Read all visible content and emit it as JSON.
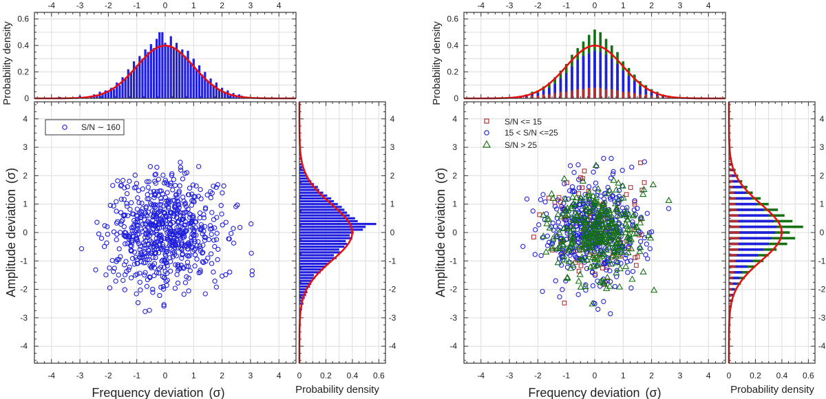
{
  "colors": {
    "blue": "#1f1fdd",
    "red": "#e81010",
    "green": "#137013",
    "darkred": "#b03030",
    "grid": "#dcdcdc",
    "frame": "#333333"
  },
  "chart_data": [
    {
      "type": "scatter",
      "id": "left",
      "xlabel": "Frequency deviation",
      "xlabel_sym": "(σ)",
      "ylabel": "Amplitude deviation",
      "ylabel_sym": "(σ)",
      "top_ylabel": "Probability density",
      "right_xlabel": "Probability density",
      "xlim": [
        -4.6,
        4.6
      ],
      "ylim": [
        -4.6,
        4.6
      ],
      "x_ticks": [
        "-4",
        "-3",
        "-2",
        "-1",
        "0",
        "1",
        "2",
        "3",
        "4"
      ],
      "y_ticks": [
        "-4",
        "-3",
        "-2",
        "-1",
        "0",
        "1",
        "2",
        "3",
        "4"
      ],
      "pd_ticks": [
        "0",
        "0.2",
        "0.4",
        "0.6"
      ],
      "pd_lim": [
        0,
        0.65
      ],
      "legend": [
        {
          "label": "S/N ∼ 160",
          "marker": "circle",
          "color": "#1f1fdd"
        }
      ],
      "series": [
        {
          "name": "S/N ∼ 160",
          "color": "#1f1fdd",
          "marker": "circle",
          "n": 720,
          "sd": 0.98,
          "seed": 7
        }
      ],
      "fit": {
        "name": "Normal(0,1)",
        "color": "#e81010",
        "peak": 0.399
      },
      "hist_freq": [
        [
          -3.7,
          0.01
        ],
        [
          -3.0,
          0.02
        ],
        [
          -2.8,
          0.01
        ],
        [
          -2.6,
          0.02
        ],
        [
          -2.5,
          0.03
        ],
        [
          -2.4,
          0.02
        ],
        [
          -2.3,
          0.05
        ],
        [
          -2.2,
          0.04
        ],
        [
          -2.1,
          0.06
        ],
        [
          -2.0,
          0.05
        ],
        [
          -1.9,
          0.08
        ],
        [
          -1.8,
          0.07
        ],
        [
          -1.7,
          0.12
        ],
        [
          -1.6,
          0.1
        ],
        [
          -1.5,
          0.16
        ],
        [
          -1.4,
          0.15
        ],
        [
          -1.3,
          0.22
        ],
        [
          -1.2,
          0.2
        ],
        [
          -1.1,
          0.28
        ],
        [
          -1.0,
          0.25
        ],
        [
          -0.9,
          0.32
        ],
        [
          -0.8,
          0.3
        ],
        [
          -0.7,
          0.37
        ],
        [
          -0.6,
          0.35
        ],
        [
          -0.5,
          0.41
        ],
        [
          -0.4,
          0.38
        ],
        [
          -0.3,
          0.45
        ],
        [
          -0.2,
          0.5
        ],
        [
          -0.1,
          0.5
        ],
        [
          0.0,
          0.42
        ],
        [
          0.1,
          0.4
        ],
        [
          0.2,
          0.47
        ],
        [
          0.3,
          0.38
        ],
        [
          0.4,
          0.42
        ],
        [
          0.5,
          0.35
        ],
        [
          0.6,
          0.37
        ],
        [
          0.7,
          0.32
        ],
        [
          0.8,
          0.36
        ],
        [
          0.9,
          0.27
        ],
        [
          1.0,
          0.3
        ],
        [
          1.1,
          0.22
        ],
        [
          1.2,
          0.25
        ],
        [
          1.3,
          0.18
        ],
        [
          1.4,
          0.2
        ],
        [
          1.5,
          0.13
        ],
        [
          1.6,
          0.15
        ],
        [
          1.7,
          0.1
        ],
        [
          1.8,
          0.12
        ],
        [
          1.9,
          0.07
        ],
        [
          2.0,
          0.08
        ],
        [
          2.1,
          0.05
        ],
        [
          2.2,
          0.06
        ],
        [
          2.3,
          0.03
        ],
        [
          2.4,
          0.04
        ],
        [
          2.5,
          0.02
        ],
        [
          2.6,
          0.03
        ],
        [
          2.7,
          0.02
        ],
        [
          2.8,
          0.01
        ]
      ],
      "hist_amp": [
        [
          -3.0,
          0.01
        ],
        [
          -2.7,
          0.02
        ],
        [
          -2.5,
          0.03
        ],
        [
          -2.4,
          0.02
        ],
        [
          -2.3,
          0.04
        ],
        [
          -2.2,
          0.05
        ],
        [
          -2.1,
          0.06
        ],
        [
          -2.0,
          0.05
        ],
        [
          -1.9,
          0.08
        ],
        [
          -1.8,
          0.09
        ],
        [
          -1.7,
          0.1
        ],
        [
          -1.6,
          0.12
        ],
        [
          -1.5,
          0.11
        ],
        [
          -1.4,
          0.16
        ],
        [
          -1.3,
          0.18
        ],
        [
          -1.2,
          0.2
        ],
        [
          -1.1,
          0.22
        ],
        [
          -1.0,
          0.24
        ],
        [
          -0.9,
          0.28
        ],
        [
          -0.8,
          0.26
        ],
        [
          -0.7,
          0.31
        ],
        [
          -0.6,
          0.3
        ],
        [
          -0.5,
          0.34
        ],
        [
          -0.4,
          0.36
        ],
        [
          -0.3,
          0.35
        ],
        [
          -0.2,
          0.4
        ],
        [
          -0.1,
          0.38
        ],
        [
          0.0,
          0.41
        ],
        [
          0.1,
          0.48
        ],
        [
          0.2,
          0.5
        ],
        [
          0.3,
          0.58
        ],
        [
          0.4,
          0.44
        ],
        [
          0.5,
          0.42
        ],
        [
          0.6,
          0.38
        ],
        [
          0.7,
          0.36
        ],
        [
          0.8,
          0.34
        ],
        [
          0.9,
          0.32
        ],
        [
          1.0,
          0.29
        ],
        [
          1.1,
          0.26
        ],
        [
          1.2,
          0.24
        ],
        [
          1.3,
          0.21
        ],
        [
          1.4,
          0.18
        ],
        [
          1.5,
          0.15
        ],
        [
          1.6,
          0.14
        ],
        [
          1.7,
          0.11
        ],
        [
          1.8,
          0.09
        ],
        [
          1.9,
          0.07
        ],
        [
          2.0,
          0.06
        ],
        [
          2.1,
          0.05
        ],
        [
          2.2,
          0.04
        ],
        [
          2.3,
          0.03
        ],
        [
          2.4,
          0.02
        ],
        [
          2.6,
          0.02
        ],
        [
          2.8,
          0.01
        ]
      ]
    },
    {
      "type": "scatter",
      "id": "right",
      "xlabel": "Frequency deviation",
      "xlabel_sym": "(σ)",
      "ylabel": "Amplitude deviation",
      "ylabel_sym": "(σ)",
      "top_ylabel": "Probability density",
      "right_xlabel": "Probability density",
      "xlim": [
        -4.6,
        4.6
      ],
      "ylim": [
        -4.6,
        4.6
      ],
      "x_ticks": [
        "-4",
        "-3",
        "-2",
        "-1",
        "0",
        "1",
        "2",
        "3",
        "4"
      ],
      "y_ticks": [
        "-4",
        "-3",
        "-2",
        "-1",
        "0",
        "1",
        "2",
        "3",
        "4"
      ],
      "pd_ticks": [
        "0",
        "0.2",
        "0.4",
        "0.6"
      ],
      "pd_lim": [
        0,
        0.65
      ],
      "legend": [
        {
          "label": "S/N <= 15",
          "marker": "square",
          "color": "#b03030"
        },
        {
          "label": "15 < S/N <=25",
          "marker": "circle",
          "color": "#1f1fdd"
        },
        {
          "label": "S/N > 25",
          "marker": "triangle",
          "color": "#137013"
        }
      ],
      "series": [
        {
          "name": "S/N <= 15",
          "color": "#b03030",
          "marker": "square",
          "n": 95,
          "sd": 1.0,
          "seed": 31
        },
        {
          "name": "15 < S/N <=25",
          "color": "#1f1fdd",
          "marker": "circle",
          "n": 430,
          "sd": 0.95,
          "seed": 53
        },
        {
          "name": "S/N > 25",
          "color": "#137013",
          "marker": "triangle",
          "n": 330,
          "sd": 0.85,
          "seed": 97
        }
      ],
      "fit": {
        "name": "Normal(0,1)",
        "color": "#e81010",
        "peak": 0.399
      },
      "hist_freq": [
        [
          -2.6,
          0.01,
          0.01,
          0.02
        ],
        [
          -2.4,
          0.01,
          0.02,
          0.03
        ],
        [
          -2.2,
          0.02,
          0.03,
          0.05
        ],
        [
          -2.0,
          0.02,
          0.04,
          0.06
        ],
        [
          -1.8,
          0.03,
          0.06,
          0.09
        ],
        [
          -1.6,
          0.03,
          0.08,
          0.12
        ],
        [
          -1.4,
          0.04,
          0.11,
          0.16
        ],
        [
          -1.2,
          0.05,
          0.15,
          0.21
        ],
        [
          -1.0,
          0.05,
          0.19,
          0.26
        ],
        [
          -0.8,
          0.06,
          0.24,
          0.33
        ],
        [
          -0.6,
          0.07,
          0.29,
          0.38
        ],
        [
          -0.4,
          0.07,
          0.32,
          0.43
        ],
        [
          -0.2,
          0.08,
          0.34,
          0.48
        ],
        [
          0.0,
          0.08,
          0.36,
          0.52
        ],
        [
          0.2,
          0.08,
          0.35,
          0.5
        ],
        [
          0.4,
          0.07,
          0.33,
          0.45
        ],
        [
          0.6,
          0.07,
          0.3,
          0.4
        ],
        [
          0.8,
          0.06,
          0.26,
          0.35
        ],
        [
          1.0,
          0.05,
          0.21,
          0.28
        ],
        [
          1.2,
          0.05,
          0.17,
          0.23
        ],
        [
          1.4,
          0.04,
          0.13,
          0.18
        ],
        [
          1.6,
          0.03,
          0.09,
          0.13
        ],
        [
          1.8,
          0.03,
          0.07,
          0.1
        ],
        [
          2.0,
          0.02,
          0.05,
          0.07
        ],
        [
          2.2,
          0.02,
          0.03,
          0.05
        ],
        [
          2.4,
          0.01,
          0.02,
          0.03
        ],
        [
          2.6,
          0.01,
          0.01,
          0.02
        ]
      ],
      "hist_amp": [
        [
          -2.6,
          0.01,
          0.01,
          0.02
        ],
        [
          -2.4,
          0.01,
          0.02,
          0.03
        ],
        [
          -2.2,
          0.02,
          0.03,
          0.04
        ],
        [
          -2.0,
          0.02,
          0.04,
          0.06
        ],
        [
          -1.8,
          0.03,
          0.06,
          0.09
        ],
        [
          -1.6,
          0.03,
          0.08,
          0.12
        ],
        [
          -1.4,
          0.04,
          0.1,
          0.15
        ],
        [
          -1.2,
          0.05,
          0.14,
          0.2
        ],
        [
          -1.0,
          0.05,
          0.18,
          0.26
        ],
        [
          -0.8,
          0.06,
          0.22,
          0.3
        ],
        [
          -0.6,
          0.07,
          0.26,
          0.36
        ],
        [
          -0.4,
          0.07,
          0.3,
          0.44
        ],
        [
          -0.2,
          0.08,
          0.32,
          0.5
        ],
        [
          0.0,
          0.08,
          0.35,
          0.46
        ],
        [
          0.2,
          0.08,
          0.36,
          0.56
        ],
        [
          0.4,
          0.07,
          0.34,
          0.48
        ],
        [
          0.6,
          0.07,
          0.3,
          0.42
        ],
        [
          0.8,
          0.06,
          0.26,
          0.37
        ],
        [
          1.0,
          0.05,
          0.21,
          0.3
        ],
        [
          1.2,
          0.05,
          0.17,
          0.24
        ],
        [
          1.4,
          0.04,
          0.13,
          0.18
        ],
        [
          1.6,
          0.03,
          0.1,
          0.14
        ],
        [
          1.8,
          0.03,
          0.07,
          0.1
        ],
        [
          2.0,
          0.02,
          0.05,
          0.07
        ],
        [
          2.2,
          0.02,
          0.03,
          0.05
        ],
        [
          2.4,
          0.01,
          0.02,
          0.03
        ],
        [
          2.6,
          0.01,
          0.01,
          0.02
        ]
      ]
    }
  ]
}
